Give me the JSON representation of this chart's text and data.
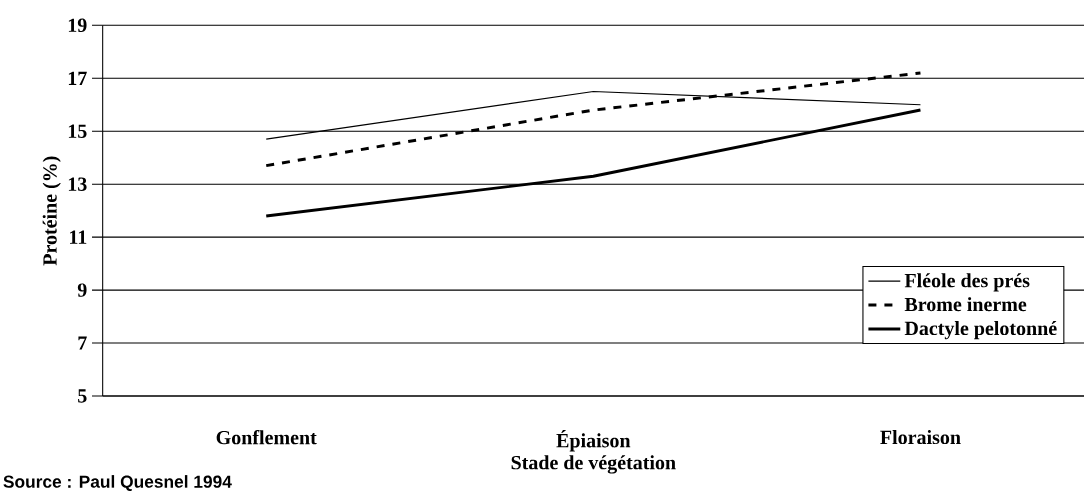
{
  "chart_data": {
    "type": "line",
    "xlabel": "Stade de végétation",
    "ylabel": "Protéine (%)",
    "categories": [
      "Gonflement",
      "Épiaison",
      "Floraison"
    ],
    "series": [
      {
        "name": "Fléole des prés",
        "color": "#000000",
        "line_style": "solid",
        "values": [
          14.7,
          16.5,
          16.0
        ]
      },
      {
        "name": "Brome inerme",
        "color": "#000000",
        "line_style": "dashed",
        "values": [
          13.7,
          15.8,
          17.2
        ]
      },
      {
        "name": "Dactyle pelotonné",
        "color": "#000000",
        "line_style": "solid",
        "values": [
          11.8,
          13.3,
          15.8
        ]
      }
    ],
    "ylim": [
      5,
      19
    ],
    "yticks": [
      5,
      7,
      9,
      11,
      13,
      15,
      17,
      19
    ],
    "grid": "y",
    "legend": "bottom right",
    "marker": "none",
    "annotations": [
      "Source : Paul Quesnel 1994"
    ]
  }
}
